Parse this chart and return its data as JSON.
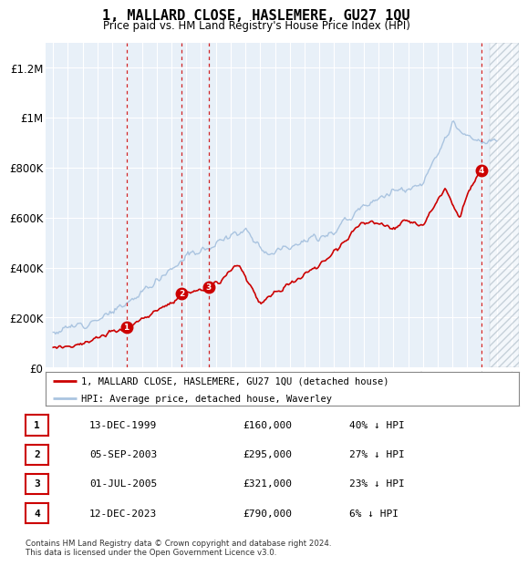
{
  "title": "1, MALLARD CLOSE, HASLEMERE, GU27 1QU",
  "subtitle": "Price paid vs. HM Land Registry's House Price Index (HPI)",
  "legend_line1": "1, MALLARD CLOSE, HASLEMERE, GU27 1QU (detached house)",
  "legend_line2": "HPI: Average price, detached house, Waverley",
  "transactions": [
    {
      "num": 1,
      "date": "13-DEC-1999",
      "price": 160000,
      "pct": "40%",
      "year": 1999.95
    },
    {
      "num": 2,
      "date": "05-SEP-2003",
      "price": 295000,
      "pct": "27%",
      "year": 2003.67
    },
    {
      "num": 3,
      "date": "01-JUL-2005",
      "price": 321000,
      "pct": "23%",
      "year": 2005.5
    },
    {
      "num": 4,
      "date": "12-DEC-2023",
      "price": 790000,
      "pct": "6%",
      "year": 2023.95
    }
  ],
  "table_rows": [
    {
      "num": 1,
      "date": "13-DEC-1999",
      "price": "£160,000",
      "pct": "40% ↓ HPI"
    },
    {
      "num": 2,
      "date": "05-SEP-2003",
      "price": "£295,000",
      "pct": "27% ↓ HPI"
    },
    {
      "num": 3,
      "date": "01-JUL-2005",
      "price": "£321,000",
      "pct": "23% ↓ HPI"
    },
    {
      "num": 4,
      "date": "12-DEC-2023",
      "price": "£790,000",
      "pct": "6% ↓ HPI"
    }
  ],
  "footer": "Contains HM Land Registry data © Crown copyright and database right 2024.\nThis data is licensed under the Open Government Licence v3.0.",
  "hatch_start": 2024.5,
  "xlim": [
    1994.5,
    2026.5
  ],
  "ylim": [
    0,
    1300000
  ],
  "yticks": [
    0,
    200000,
    400000,
    600000,
    800000,
    1000000,
    1200000
  ],
  "ytick_labels": [
    "£0",
    "£200K",
    "£400K",
    "£600K",
    "£800K",
    "£1M",
    "£1.2M"
  ],
  "xticks": [
    1995,
    1996,
    1997,
    1998,
    1999,
    2000,
    2001,
    2002,
    2003,
    2004,
    2005,
    2006,
    2007,
    2008,
    2009,
    2010,
    2011,
    2012,
    2013,
    2014,
    2015,
    2016,
    2017,
    2018,
    2019,
    2020,
    2021,
    2022,
    2023,
    2024,
    2025,
    2026
  ],
  "bg_color": "#e8f0f8",
  "hpi_color": "#aac4e0",
  "price_color": "#cc0000",
  "vline_color": "#cc0000",
  "marker_color": "#cc0000",
  "hatch_color": "#b8c4d0"
}
